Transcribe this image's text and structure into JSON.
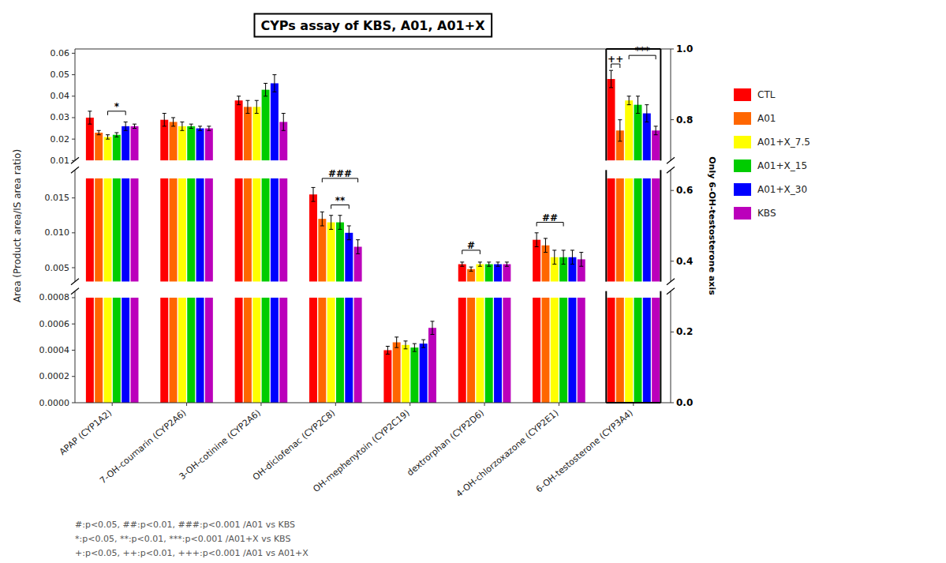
{
  "chart_data": [
    {
      "type": "bar",
      "title": "CYPs assay of KBS, A01, A01+X",
      "ylabel": "Area (Product area/IS area ratio)",
      "y2label": "Only 6-OH-testosterone axis",
      "categories": [
        "APAP (CYP1A2)",
        "7-OH-coumarin (CYP2A6)",
        "3-OH-cotinine (CYP2A6)",
        "OH-diclofenac (CYP2C8)",
        "OH-mephenytoin (CYP2C19)",
        "dextrorphan (CYP2D6)",
        "4-OH-chlorzoxazone (CYP2E1)",
        "6-OH-testosterone (CYP3A4)"
      ],
      "series": [
        {
          "name": "CTL",
          "color": "#FF0000",
          "values": [
            0.03,
            0.029,
            0.038,
            null,
            null,
            null,
            null,
            0.048
          ],
          "errors": [
            0.003,
            0.003,
            0.002,
            null,
            null,
            null,
            null,
            0.004
          ]
        },
        {
          "name": "A01",
          "color": "#FF6600",
          "values": [
            0.023,
            0.028,
            0.035,
            null,
            null,
            null,
            null,
            0.024
          ],
          "errors": [
            0.001,
            0.002,
            0.003,
            null,
            null,
            null,
            null,
            0.005
          ]
        },
        {
          "name": "A01+X_7.5",
          "color": "#FFFF00",
          "values": [
            0.021,
            0.026,
            0.035,
            null,
            null,
            null,
            null,
            0.038
          ],
          "errors": [
            0.001,
            0.002,
            0.003,
            null,
            null,
            null,
            null,
            0.002
          ]
        },
        {
          "name": "A01+X_15",
          "color": "#00CC00",
          "values": [
            0.022,
            0.026,
            0.043,
            null,
            null,
            null,
            null,
            0.036
          ],
          "errors": [
            0.001,
            0.001,
            0.003,
            null,
            null,
            null,
            null,
            0.004
          ]
        },
        {
          "name": "A01+X_30",
          "color": "#0000FF",
          "values": [
            0.026,
            0.025,
            0.046,
            null,
            null,
            null,
            null,
            0.032
          ],
          "errors": [
            0.002,
            0.001,
            0.004,
            null,
            null,
            null,
            null,
            0.004
          ]
        },
        {
          "name": "KBS",
          "color": "#BB00BB",
          "values": [
            0.026,
            0.025,
            0.028,
            null,
            null,
            null,
            null,
            0.024
          ],
          "errors": [
            0.001,
            0.001,
            0.004,
            null,
            null,
            null,
            null,
            0.002
          ]
        }
      ],
      "ylim": [
        0.01,
        0.062
      ],
      "yticks": [
        0.01,
        0.02,
        0.03,
        0.04,
        0.05,
        0.06
      ],
      "y2lim": [
        0.0,
        1.0
      ],
      "y2ticks": [
        {
          "value": 0.0,
          "label": "0.0"
        },
        0.2,
        0.4,
        0.6,
        0.8,
        {
          "value": 1.0,
          "label": "1.0"
        }
      ],
      "tick_labels": "y",
      "legend": "right",
      "grid": false,
      "annotations": [
        {
          "text": "*",
          "category": "APAP (CYP1A2)",
          "from": "A01+X_7.5",
          "to": "A01+X_30",
          "y": 0.033
        },
        {
          "text": "++",
          "category": "6-OH-testosterone (CYP3A4)",
          "from": "CTL",
          "to": "A01",
          "y": 0.055
        },
        {
          "text": "***",
          "category": "6-OH-testosterone (CYP3A4)",
          "from": "A01+X_7.5",
          "to": "KBS",
          "y": 0.059
        }
      ]
    },
    {
      "type": "bar",
      "categories": [
        "APAP (CYP1A2)",
        "7-OH-coumarin (CYP2A6)",
        "3-OH-cotinine (CYP2A6)",
        "OH-diclofenac (CYP2C8)",
        "OH-mephenytoin (CYP2C19)",
        "dextrorphan (CYP2D6)",
        "4-OH-chlorzoxazone (CYP2E1)",
        "6-OH-testosterone (CYP3A4)"
      ],
      "series": [
        {
          "name": "CTL",
          "color": "#FF0000",
          "values": [
            0.0178,
            0.0178,
            0.0178,
            0.0155,
            null,
            0.0055,
            0.009,
            0.0178
          ],
          "errors": [
            0,
            0,
            0,
            0.001,
            null,
            0.0003,
            0.001,
            0
          ]
        },
        {
          "name": "A01",
          "color": "#FF6600",
          "values": [
            0.0178,
            0.0178,
            0.0178,
            0.012,
            null,
            0.0048,
            0.0082,
            0.0178
          ],
          "errors": [
            0,
            0,
            0,
            0.001,
            null,
            0.0003,
            0.001,
            0
          ]
        },
        {
          "name": "A01+X_7.5",
          "color": "#FFFF00",
          "values": [
            0.0178,
            0.0178,
            0.0178,
            0.0115,
            null,
            0.0055,
            0.0065,
            0.0178
          ],
          "errors": [
            0,
            0,
            0,
            0.001,
            null,
            0.0003,
            0.001,
            0
          ]
        },
        {
          "name": "A01+X_15",
          "color": "#00CC00",
          "values": [
            0.0178,
            0.0178,
            0.0178,
            0.0115,
            null,
            0.0055,
            0.0065,
            0.0178
          ],
          "errors": [
            0,
            0,
            0,
            0.001,
            null,
            0.0003,
            0.001,
            0
          ]
        },
        {
          "name": "A01+X_30",
          "color": "#0000FF",
          "values": [
            0.0178,
            0.0178,
            0.0178,
            0.01,
            null,
            0.0055,
            0.0065,
            0.0178
          ],
          "errors": [
            0,
            0,
            0,
            0.001,
            null,
            0.0003,
            0.001,
            0
          ]
        },
        {
          "name": "KBS",
          "color": "#BB00BB",
          "values": [
            0.0178,
            0.0178,
            0.0178,
            0.008,
            null,
            0.0055,
            0.0062,
            0.0178
          ],
          "errors": [
            0,
            0,
            0,
            0.001,
            null,
            0.0003,
            0.001,
            0
          ]
        }
      ],
      "ylim": [
        0.003,
        0.019
      ],
      "yticks": [
        0.005,
        {
          "value": 0.01,
          "label": "0.010"
        },
        0.015
      ],
      "tick_labels": "y",
      "grid": false,
      "annotations": [
        {
          "text": "###",
          "category": "OH-diclofenac (CYP2C8)",
          "from": "A01",
          "to": "KBS",
          "y": 0.0178
        },
        {
          "text": "**",
          "category": "OH-diclofenac (CYP2C8)",
          "from": "A01+X_7.5",
          "to": "A01+X_30",
          "y": 0.014
        },
        {
          "text": "#",
          "category": "dextrorphan (CYP2D6)",
          "from": "CTL",
          "to": "A01+X_7.5",
          "y": 0.0075
        },
        {
          "text": "##",
          "category": "4-OH-chlorzoxazone (CYP2E1)",
          "from": "CTL",
          "to": "A01+X_15",
          "y": 0.0115
        }
      ]
    },
    {
      "type": "bar",
      "categories": [
        "APAP (CYP1A2)",
        "7-OH-coumarin (CYP2A6)",
        "3-OH-cotinine (CYP2A6)",
        "OH-diclofenac (CYP2C8)",
        "OH-mephenytoin (CYP2C19)",
        "dextrorphan (CYP2D6)",
        "4-OH-chlorzoxazone (CYP2E1)",
        "6-OH-testosterone (CYP3A4)"
      ],
      "series": [
        {
          "name": "CTL",
          "color": "#FF0000",
          "values": [
            0.0008,
            0.0008,
            0.0008,
            0.0008,
            0.0004,
            0.0008,
            0.0008,
            0.0008
          ],
          "errors": [
            0,
            0,
            0,
            0,
            3e-05,
            0,
            0,
            0
          ]
        },
        {
          "name": "A01",
          "color": "#FF6600",
          "values": [
            0.0008,
            0.0008,
            0.0008,
            0.0008,
            0.00046,
            0.0008,
            0.0008,
            0.0008
          ],
          "errors": [
            0,
            0,
            0,
            0,
            4e-05,
            0,
            0,
            0
          ]
        },
        {
          "name": "A01+X_7.5",
          "color": "#FFFF00",
          "values": [
            0.0008,
            0.0008,
            0.0008,
            0.0008,
            0.00044,
            0.0008,
            0.0008,
            0.0008
          ],
          "errors": [
            0,
            0,
            0,
            0,
            3e-05,
            0,
            0,
            0
          ]
        },
        {
          "name": "A01+X_15",
          "color": "#00CC00",
          "values": [
            0.0008,
            0.0008,
            0.0008,
            0.0008,
            0.00042,
            0.0008,
            0.0008,
            0.0008
          ],
          "errors": [
            0,
            0,
            0,
            0,
            3e-05,
            0,
            0,
            0
          ]
        },
        {
          "name": "A01+X_30",
          "color": "#0000FF",
          "values": [
            0.0008,
            0.0008,
            0.0008,
            0.0008,
            0.00045,
            0.0008,
            0.0008,
            0.0008
          ],
          "errors": [
            0,
            0,
            0,
            0,
            3e-05,
            0,
            0,
            0
          ]
        },
        {
          "name": "KBS",
          "color": "#BB00BB",
          "values": [
            0.0008,
            0.0008,
            0.0008,
            0.0008,
            0.00057,
            0.0008,
            0.0008,
            0.0008
          ],
          "errors": [
            0,
            0,
            0,
            0,
            5e-05,
            0,
            0,
            0
          ]
        }
      ],
      "ylim": [
        0.0,
        0.00085
      ],
      "yticks": [
        {
          "value": 0.0,
          "label": "0.0000"
        },
        0.0002,
        0.0004,
        0.0006,
        0.0008
      ],
      "grid": false,
      "footnotes": [
        "#:p<0.05, ##:p<0.01, ###:p<0.001   /A01 vs KBS",
        "*:p<0.05, **:p<0.01, ***:p<0.001   /A01+X vs KBS",
        "+:p<0.05, ++:p<0.01, +++:p<0.001   /A01 vs A01+X"
      ]
    }
  ]
}
